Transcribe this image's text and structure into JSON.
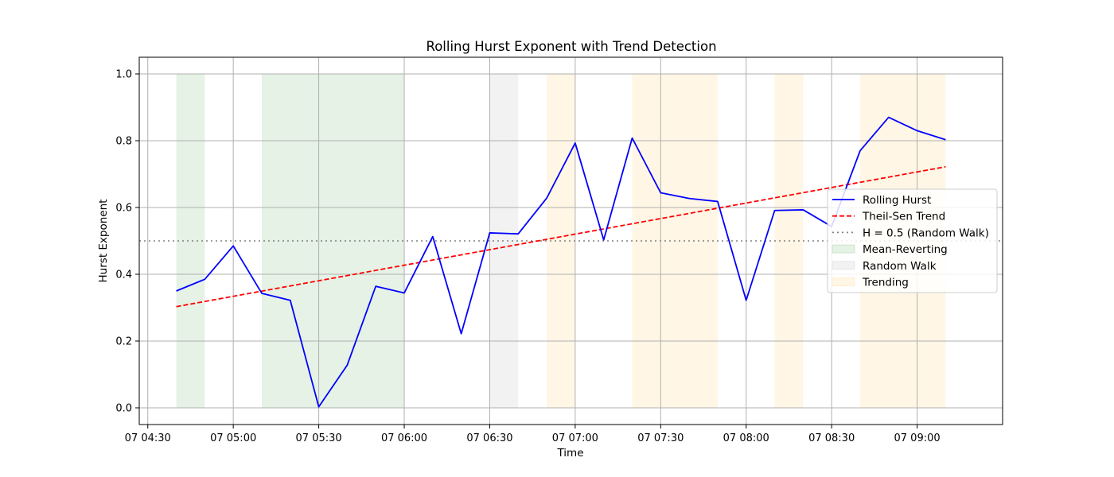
{
  "chart_data": {
    "type": "line",
    "title": "Rolling Hurst Exponent with Trend Detection",
    "xlabel": "Time",
    "ylabel": "Hurst Exponent",
    "ylim": [
      -0.05,
      1.05
    ],
    "xlim": [
      "07 04:27",
      "07 09:30"
    ],
    "grid": true,
    "legend_position": "center-right",
    "x_ticks": [
      "07 04:30",
      "07 05:00",
      "07 05:30",
      "07 06:00",
      "07 06:30",
      "07 07:00",
      "07 07:30",
      "07 08:00",
      "07 08:30",
      "07 09:00"
    ],
    "y_ticks": [
      0.0,
      0.2,
      0.4,
      0.6,
      0.8,
      1.0
    ],
    "x": [
      "07 04:40",
      "07 04:50",
      "07 05:00",
      "07 05:10",
      "07 05:20",
      "07 05:30",
      "07 05:40",
      "07 05:50",
      "07 06:00",
      "07 06:10",
      "07 06:20",
      "07 06:30",
      "07 06:40",
      "07 06:50",
      "07 07:00",
      "07 07:10",
      "07 07:20",
      "07 07:30",
      "07 07:40",
      "07 07:50",
      "07 08:00",
      "07 08:10",
      "07 08:20",
      "07 08:30",
      "07 08:40",
      "07 08:50",
      "07 09:00",
      "07 09:10"
    ],
    "series": [
      {
        "name": "Rolling Hurst",
        "style": "solid",
        "color": "#0000ff",
        "values": [
          0.35,
          0.385,
          0.485,
          0.343,
          0.322,
          0.003,
          0.128,
          0.364,
          0.344,
          0.513,
          0.222,
          0.524,
          0.521,
          0.628,
          0.793,
          0.503,
          0.808,
          0.644,
          0.627,
          0.618,
          0.322,
          0.591,
          0.593,
          0.543,
          0.77,
          0.87,
          0.83,
          0.803
        ]
      },
      {
        "name": "Theil-Sen Trend",
        "style": "dashed",
        "color": "#ff0000",
        "start": [
          "07 04:40",
          0.303
        ],
        "end": [
          "07 09:10",
          0.722
        ]
      },
      {
        "name": "H = 0.5 (Random Walk)",
        "style": "dotted",
        "color": "#808080",
        "value": 0.5
      }
    ],
    "regimes": [
      {
        "name": "Mean-Reverting",
        "color": "#008000",
        "opacity": 0.1
      },
      {
        "name": "Random Walk",
        "color": "#808080",
        "opacity": 0.1
      },
      {
        "name": "Trending",
        "color": "#ffa500",
        "opacity": 0.1
      }
    ],
    "regime_bands": [
      {
        "start": "07 04:40",
        "end": "07 04:50",
        "regime": "Mean-Reverting"
      },
      {
        "start": "07 05:10",
        "end": "07 06:00",
        "regime": "Mean-Reverting"
      },
      {
        "start": "07 06:30",
        "end": "07 06:40",
        "regime": "Random Walk"
      },
      {
        "start": "07 06:50",
        "end": "07 07:00",
        "regime": "Trending"
      },
      {
        "start": "07 07:20",
        "end": "07 07:50",
        "regime": "Trending"
      },
      {
        "start": "07 08:10",
        "end": "07 08:20",
        "regime": "Trending"
      },
      {
        "start": "07 08:40",
        "end": "07 09:10",
        "regime": "Trending"
      }
    ]
  }
}
